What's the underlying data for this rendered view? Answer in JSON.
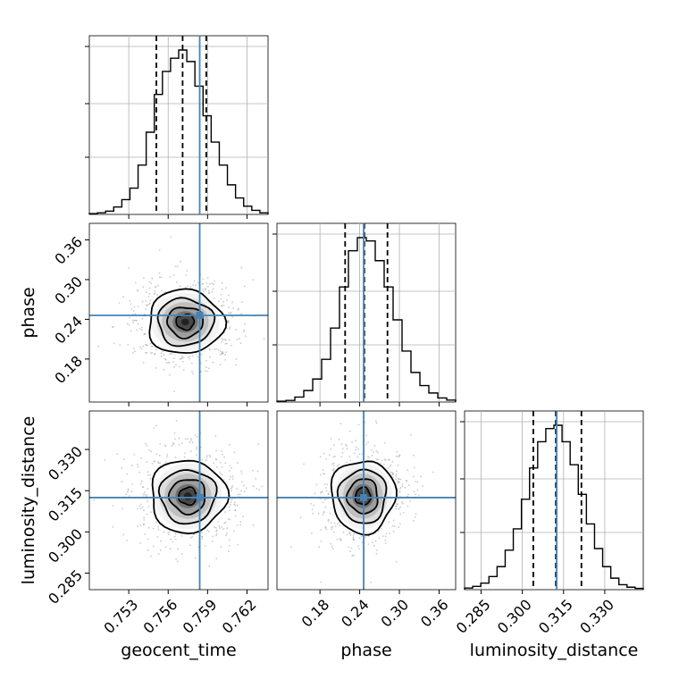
{
  "chart_data": {
    "type": "corner",
    "parameters": [
      "geocent_time",
      "phase",
      "luminosity_distance"
    ],
    "truths": {
      "geocent_time": 0.7584,
      "phase": 0.246,
      "luminosity_distance": 0.3125
    },
    "quantiles": {
      "geocent_time": [
        0.7551,
        0.7571,
        0.7589
      ],
      "phase": [
        0.218,
        0.247,
        0.282
      ],
      "luminosity_distance": [
        0.304,
        0.3122,
        0.3215
      ]
    },
    "ranges": {
      "geocent_time": [
        0.75,
        0.7636
      ],
      "phase": [
        0.115,
        0.385
      ],
      "luminosity_distance": [
        0.279,
        0.344
      ]
    },
    "ticks": {
      "geocent_time": [
        "0.753",
        "0.756",
        "0.759",
        "0.762"
      ],
      "phase": [
        "0.18",
        "0.24",
        "0.30",
        "0.36"
      ],
      "luminosity_distance": [
        "0.285",
        "0.300",
        "0.315",
        "0.330"
      ]
    },
    "histograms": {
      "geocent_time": [
        0.005,
        0.01,
        0.02,
        0.045,
        0.09,
        0.16,
        0.3,
        0.5,
        0.73,
        0.87,
        0.95,
        1.0,
        0.93,
        0.78,
        0.6,
        0.44,
        0.3,
        0.18,
        0.1,
        0.05,
        0.025,
        0.01
      ],
      "phase": [
        0.005,
        0.01,
        0.03,
        0.07,
        0.14,
        0.26,
        0.45,
        0.7,
        0.92,
        1.0,
        0.98,
        0.86,
        0.7,
        0.5,
        0.31,
        0.18,
        0.1,
        0.055,
        0.025,
        0.012
      ],
      "luminosity_distance": [
        0.01,
        0.02,
        0.04,
        0.08,
        0.14,
        0.24,
        0.37,
        0.55,
        0.74,
        0.9,
        0.98,
        1.0,
        0.9,
        0.76,
        0.58,
        0.4,
        0.25,
        0.14,
        0.07,
        0.03,
        0.015,
        0.008
      ]
    },
    "peaks": {
      "geocent_time|phase": [
        0.7573,
        0.236
      ],
      "geocent_time|luminosity_distance": [
        0.7575,
        0.313
      ],
      "phase|luminosity_distance": [
        0.245,
        0.313
      ]
    },
    "colors": {
      "truth": "#4682b4",
      "histogram": "#000000",
      "grid": "#b0b0b0"
    },
    "grid": true
  }
}
